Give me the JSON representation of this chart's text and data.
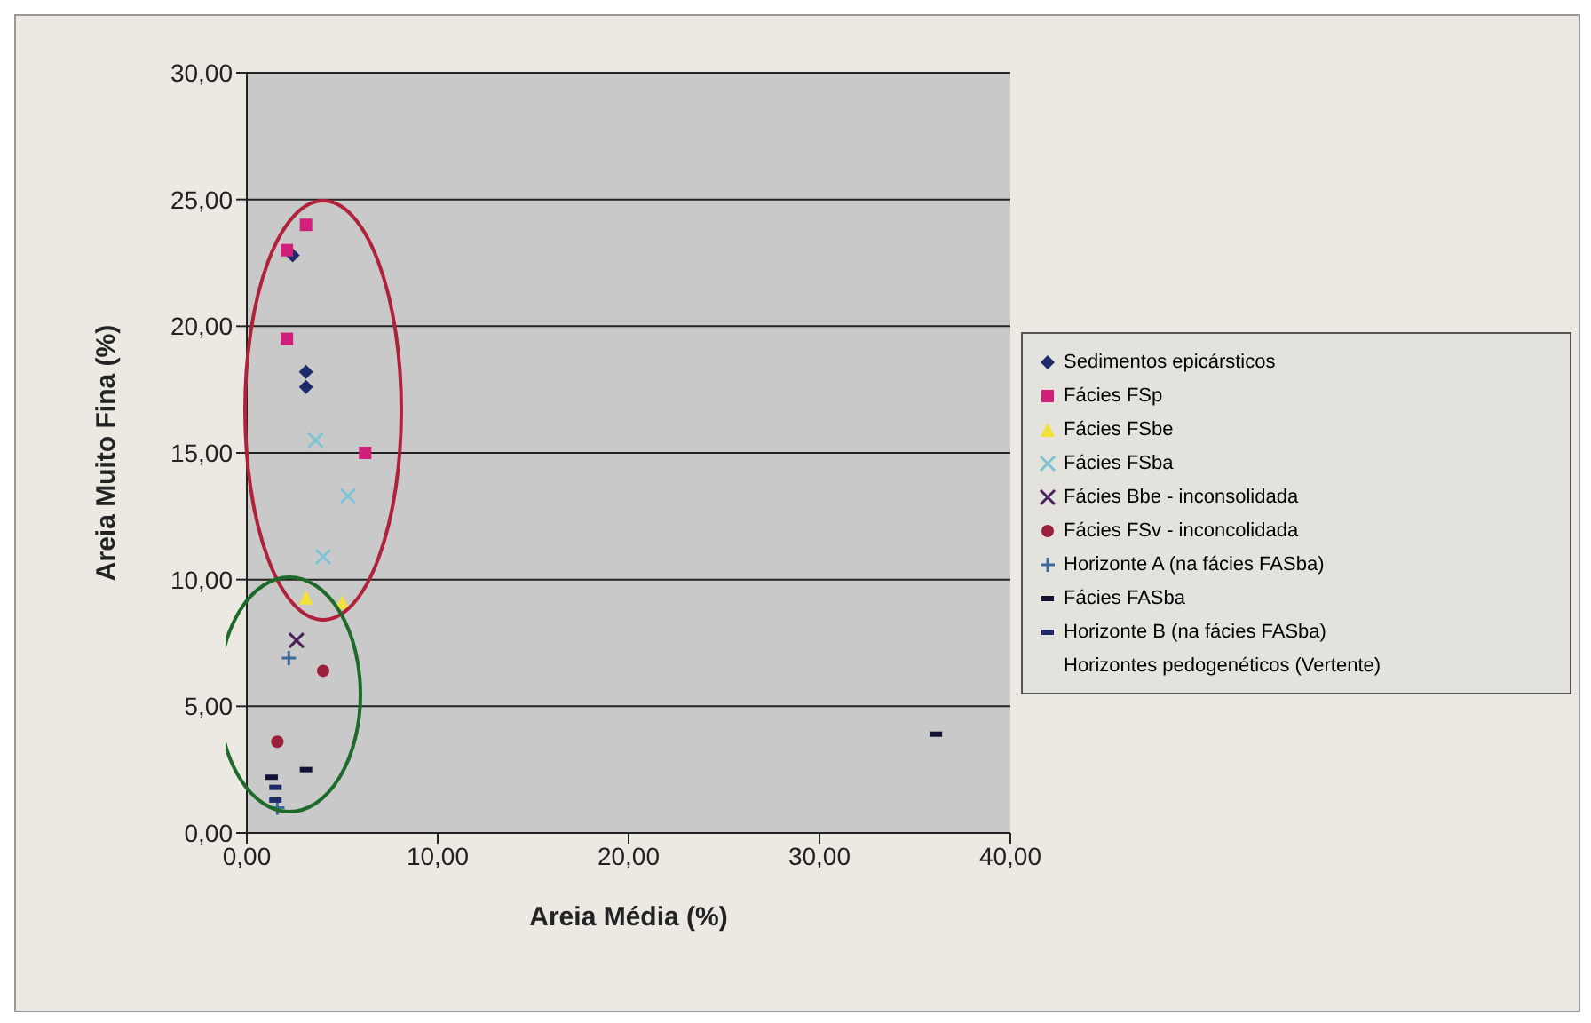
{
  "chart_data": {
    "type": "scatter",
    "xlabel": "Areia Média (%)",
    "ylabel": "Areia Muito Fina (%)",
    "xlim": [
      0,
      40
    ],
    "xticks": [
      {
        "value": 0,
        "label": "0,00"
      },
      {
        "value": 10,
        "label": "10,00"
      },
      {
        "value": 20,
        "label": "20,00"
      },
      {
        "value": 30,
        "label": "30,00"
      },
      {
        "value": 40,
        "label": "40,00"
      }
    ],
    "ylim": [
      0,
      30
    ],
    "yticks": [
      {
        "value": 0,
        "label": "0,00"
      },
      {
        "value": 5,
        "label": "5,00"
      },
      {
        "value": 10,
        "label": "10,00"
      },
      {
        "value": 15,
        "label": "15,00"
      },
      {
        "value": 20,
        "label": "20,00"
      },
      {
        "value": 25,
        "label": "25,00"
      },
      {
        "value": 30,
        "label": "30,00"
      }
    ],
    "grid": "y",
    "legend": "right",
    "series": [
      {
        "name": "Sedimentos epicársticos",
        "color": "#1f2a6b",
        "marker": "diamond",
        "x": [
          2.4,
          3.1,
          3.1
        ],
        "values": [
          22.8,
          18.2,
          17.6
        ]
      },
      {
        "name": "Fácies FSp",
        "color": "#d0207a",
        "marker": "square",
        "x": [
          3.1,
          2.1,
          2.1,
          6.2
        ],
        "values": [
          24.0,
          23.0,
          19.5,
          15.0
        ]
      },
      {
        "name": "Fácies FSbe",
        "color": "#f2e23a",
        "marker": "triangle",
        "x": [
          3.1,
          5.0
        ],
        "values": [
          9.3,
          9.1
        ]
      },
      {
        "name": "Fácies FSba",
        "color": "#7fc4d6",
        "marker": "cross",
        "x": [
          3.6,
          5.3,
          4.0
        ],
        "values": [
          15.5,
          13.3,
          10.9
        ]
      },
      {
        "name": "Fácies Bbe - inconsolidada",
        "color": "#4a1f5a",
        "marker": "cross",
        "x": [
          2.6
        ],
        "values": [
          7.6
        ]
      },
      {
        "name": "Fácies FSv - inconcolidada",
        "color": "#9a1f3a",
        "marker": "circle",
        "x": [
          4.0,
          1.6
        ],
        "values": [
          6.4,
          3.6
        ]
      },
      {
        "name": "Horizonte A (na fácies FASba)",
        "color": "#3a6a9a",
        "marker": "plus",
        "x": [
          2.2,
          1.6
        ],
        "values": [
          6.9,
          1.0
        ]
      },
      {
        "name": "Fácies FASba",
        "color": "#111133",
        "x": [
          3.1,
          1.3,
          36.1
        ],
        "values": [
          2.5,
          2.2,
          3.9
        ]
      },
      {
        "name": "Horizonte B (na fácies FASba)",
        "color": "#1f2a6b",
        "x": [
          1.5,
          1.5
        ],
        "values": [
          1.8,
          1.3
        ]
      },
      {
        "name": "Horizontes pedogenéticos (Vertente)",
        "marker": "none"
      }
    ]
  }
}
